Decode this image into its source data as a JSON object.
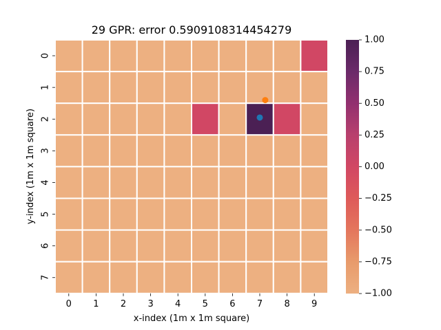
{
  "chart_data": {
    "type": "heatmap",
    "title": "29 GPR: error 0.5909108314454279",
    "xlabel": "x-index (1m x 1m square)",
    "ylabel": "y-index (1m x 1m square)",
    "x_categories": [
      "0",
      "1",
      "2",
      "3",
      "4",
      "5",
      "6",
      "7",
      "8",
      "9"
    ],
    "y_categories": [
      "0",
      "1",
      "2",
      "3",
      "4",
      "5",
      "6",
      "7"
    ],
    "values": [
      [
        -1,
        -1,
        -1,
        -1,
        -1,
        -1,
        -1,
        -1,
        -1,
        0
      ],
      [
        -1,
        -1,
        -1,
        -1,
        -1,
        -1,
        -1,
        -1,
        -1,
        -1
      ],
      [
        -1,
        -1,
        -1,
        -1,
        -1,
        0,
        -1,
        1,
        0,
        -1
      ],
      [
        -1,
        -1,
        -1,
        -1,
        -1,
        -1,
        -1,
        -1,
        -1,
        -1
      ],
      [
        -1,
        -1,
        -1,
        -1,
        -1,
        -1,
        -1,
        -1,
        -1,
        -1
      ],
      [
        -1,
        -1,
        -1,
        -1,
        -1,
        -1,
        -1,
        -1,
        -1,
        -1
      ],
      [
        -1,
        -1,
        -1,
        -1,
        -1,
        -1,
        -1,
        -1,
        -1,
        -1
      ],
      [
        -1,
        -1,
        -1,
        -1,
        -1,
        -1,
        -1,
        -1,
        -1,
        -1
      ]
    ],
    "vmin": -1,
    "vmax": 1,
    "colormap": "flare",
    "colorbar_ticks": [
      "1.00",
      "0.75",
      "0.50",
      "0.25",
      "0.00",
      "−0.25",
      "−0.50",
      "−0.75",
      "−1.00"
    ],
    "colorbar_tick_values": [
      1.0,
      0.75,
      0.5,
      0.25,
      0.0,
      -0.25,
      -0.5,
      -0.75,
      -1.0
    ],
    "points": [
      {
        "x": 7.2,
        "y": 1.4,
        "color": "#ff7f0e"
      },
      {
        "x": 7.0,
        "y": 1.95,
        "color": "#1f77b4"
      }
    ]
  }
}
